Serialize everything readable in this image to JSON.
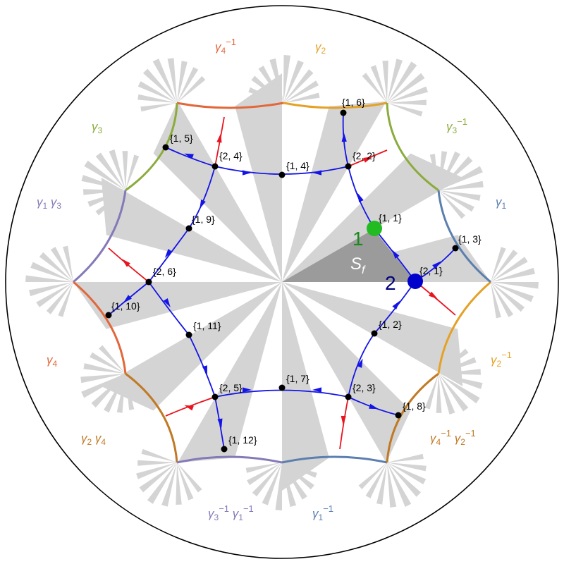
{
  "colors": {
    "tile": "#d4d4d4",
    "fundamental": "#9b9b9b",
    "blue_path": "#1414e6",
    "red_path": "#e8141e",
    "gamma1": "#5b7fae",
    "gamma2": "#e5a126",
    "gamma3": "#8bab3c",
    "gamma4": "#e2673a",
    "gamma1_gamma3": "#8579b8",
    "gamma2_gamma4": "#c07a26",
    "start_marker": "#22bb22",
    "end_marker": "#0000cc"
  },
  "region_label": "S",
  "region_label_sub": "f",
  "markers": [
    {
      "key": "start",
      "label": "1"
    },
    {
      "key": "end",
      "label": "2"
    }
  ],
  "vertices": [
    {
      "id": "v11",
      "label": "{1, 1}"
    },
    {
      "id": "v21",
      "label": "{2, 1}"
    },
    {
      "id": "v12",
      "label": "{1, 2}"
    },
    {
      "id": "v13",
      "label": "{1, 3}"
    },
    {
      "id": "v22",
      "label": "{2, 2}"
    },
    {
      "id": "v14",
      "label": "{1, 4}"
    },
    {
      "id": "v24",
      "label": "{2, 4}"
    },
    {
      "id": "v15",
      "label": "{1, 5}"
    },
    {
      "id": "v16",
      "label": "{1, 6}"
    },
    {
      "id": "v19",
      "label": "{1, 9}"
    },
    {
      "id": "v26",
      "label": "{2, 6}"
    },
    {
      "id": "v110",
      "label": "{1, 10}"
    },
    {
      "id": "v111",
      "label": "{1, 11}"
    },
    {
      "id": "v25",
      "label": "{2, 5}"
    },
    {
      "id": "v17",
      "label": "{1, 7}"
    },
    {
      "id": "v23",
      "label": "{2, 3}"
    },
    {
      "id": "v18",
      "label": "{1, 8}"
    },
    {
      "id": "v112",
      "label": "{1, 12}"
    }
  ],
  "generator_labels": [
    {
      "id": "g4inv_top",
      "base": "γ",
      "sub": "4",
      "sup": "−1",
      "color_key": "gamma4"
    },
    {
      "id": "g2_top",
      "base": "γ",
      "sub": "2",
      "sup": "",
      "color_key": "gamma2"
    },
    {
      "id": "g3_left",
      "base": "γ",
      "sub": "3",
      "sup": "",
      "color_key": "gamma3"
    },
    {
      "id": "g3inv_right",
      "base": "γ",
      "sub": "3",
      "sup": "−1",
      "color_key": "gamma3"
    },
    {
      "id": "g1g3_left",
      "base": "γ",
      "sub": "1",
      "sup": "",
      "base2": "γ",
      "sub2": "3",
      "sup2": "",
      "color_key": "gamma1_gamma3"
    },
    {
      "id": "g1_right",
      "base": "γ",
      "sub": "1",
      "sup": "",
      "color_key": "gamma1"
    },
    {
      "id": "g4_left",
      "base": "γ",
      "sub": "4",
      "sup": "",
      "color_key": "gamma4"
    },
    {
      "id": "g2inv_right",
      "base": "γ",
      "sub": "2",
      "sup": "−1",
      "color_key": "gamma2"
    },
    {
      "id": "g2g4_left",
      "base": "γ",
      "sub": "2",
      "sup": "",
      "base2": "γ",
      "sub2": "4",
      "sup2": "",
      "color_key": "gamma2_gamma4"
    },
    {
      "id": "g4invg2inv_right",
      "base": "γ",
      "sub": "4",
      "sup": "−1",
      "base2": "γ",
      "sub2": "2",
      "sup2": "−1",
      "color_key": "gamma2_gamma4"
    },
    {
      "id": "g3invg1inv_bottom",
      "base": "γ",
      "sub": "3",
      "sup": "−1",
      "base2": "γ",
      "sub2": "1",
      "sup2": "−1",
      "color_key": "gamma1_gamma3"
    },
    {
      "id": "g1inv_bottom",
      "base": "γ",
      "sub": "1",
      "sup": "−1",
      "color_key": "gamma1"
    }
  ]
}
